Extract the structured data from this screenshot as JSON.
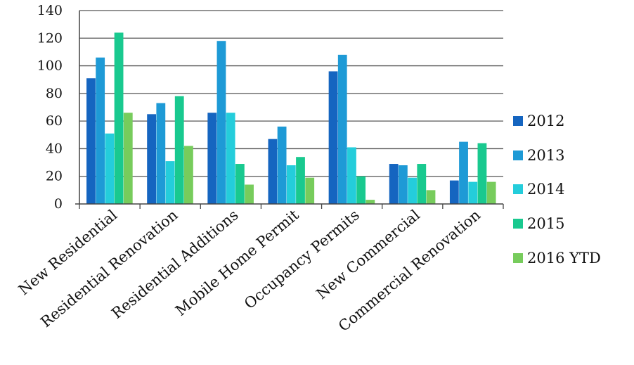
{
  "chart_data": {
    "type": "bar",
    "title": "",
    "xlabel": "",
    "ylabel": "",
    "ylim": [
      0,
      140
    ],
    "yticks": [
      0,
      20,
      40,
      60,
      80,
      100,
      120,
      140
    ],
    "grid": true,
    "legend_position": "right",
    "categories": [
      "New Residential",
      "Residential Renovation",
      "Residential Additions",
      "Mobile Home Permit",
      "Occupancy Permits",
      "New Commercial",
      "Commercial Renovation"
    ],
    "series": [
      {
        "name": "2012",
        "color": "#1565C0",
        "values": [
          91,
          65,
          66,
          47,
          96,
          29,
          17
        ]
      },
      {
        "name": "2013",
        "color": "#1E9AD6",
        "values": [
          106,
          73,
          118,
          56,
          108,
          28,
          45
        ]
      },
      {
        "name": "2014",
        "color": "#24CDDB",
        "values": [
          51,
          31,
          66,
          28,
          41,
          19,
          16
        ]
      },
      {
        "name": "2015",
        "color": "#19C98F",
        "values": [
          124,
          78,
          29,
          34,
          20,
          29,
          44
        ]
      },
      {
        "name": "2016 YTD",
        "color": "#77CC5C",
        "values": [
          66,
          42,
          14,
          19,
          3,
          10,
          16
        ]
      }
    ]
  }
}
